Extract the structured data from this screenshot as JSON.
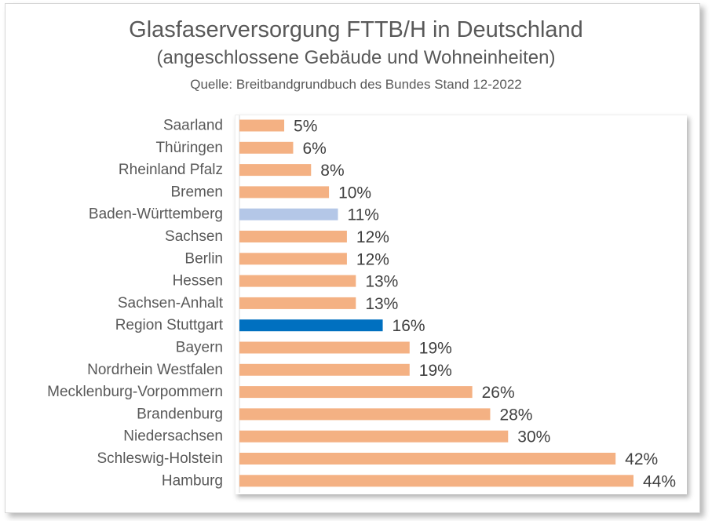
{
  "title": "Glasfaserversorgung FTTB/H in Deutschland",
  "subtitle": "(angeschlossene Gebäude und Wohneinheiten)",
  "source": "Quelle: Breitbandgrundbuch des Bundes Stand 12-2022",
  "colors": {
    "default_bar": "#f4b183",
    "baden_wuerttemberg": "#b4c7e7",
    "region_stuttgart": "#0070c0"
  },
  "chart_data": {
    "type": "bar",
    "orientation": "horizontal",
    "title": "Glasfaserversorgung FTTB/H in Deutschland",
    "subtitle": "(angeschlossene Gebäude und Wohneinheiten)",
    "xlim": [
      0,
      44
    ],
    "grid": false,
    "legend": "none",
    "categories": [
      "Saarland",
      "Thüringen",
      "Rheinland Pfalz",
      "Bremen",
      "Baden-Württemberg",
      "Sachsen",
      "Berlin",
      "Hessen",
      "Sachsen-Anhalt",
      "Region Stuttgart",
      "Bayern",
      "Nordrhein Westfalen",
      "Mecklenburg-Vorpommern",
      "Brandenburg",
      "Niedersachsen",
      "Schleswig-Holstein",
      "Hamburg"
    ],
    "values": [
      5,
      6,
      8,
      10,
      11,
      12,
      12,
      13,
      13,
      16,
      19,
      19,
      26,
      28,
      30,
      42,
      44
    ],
    "value_labels": [
      "5%",
      "6%",
      "8%",
      "10%",
      "11%",
      "12%",
      "12%",
      "13%",
      "13%",
      "16%",
      "19%",
      "19%",
      "26%",
      "28%",
      "30%",
      "42%",
      "44%"
    ],
    "bar_colors": [
      "#f4b183",
      "#f4b183",
      "#f4b183",
      "#f4b183",
      "#b4c7e7",
      "#f4b183",
      "#f4b183",
      "#f4b183",
      "#f4b183",
      "#0070c0",
      "#f4b183",
      "#f4b183",
      "#f4b183",
      "#f4b183",
      "#f4b183",
      "#f4b183",
      "#f4b183"
    ]
  }
}
